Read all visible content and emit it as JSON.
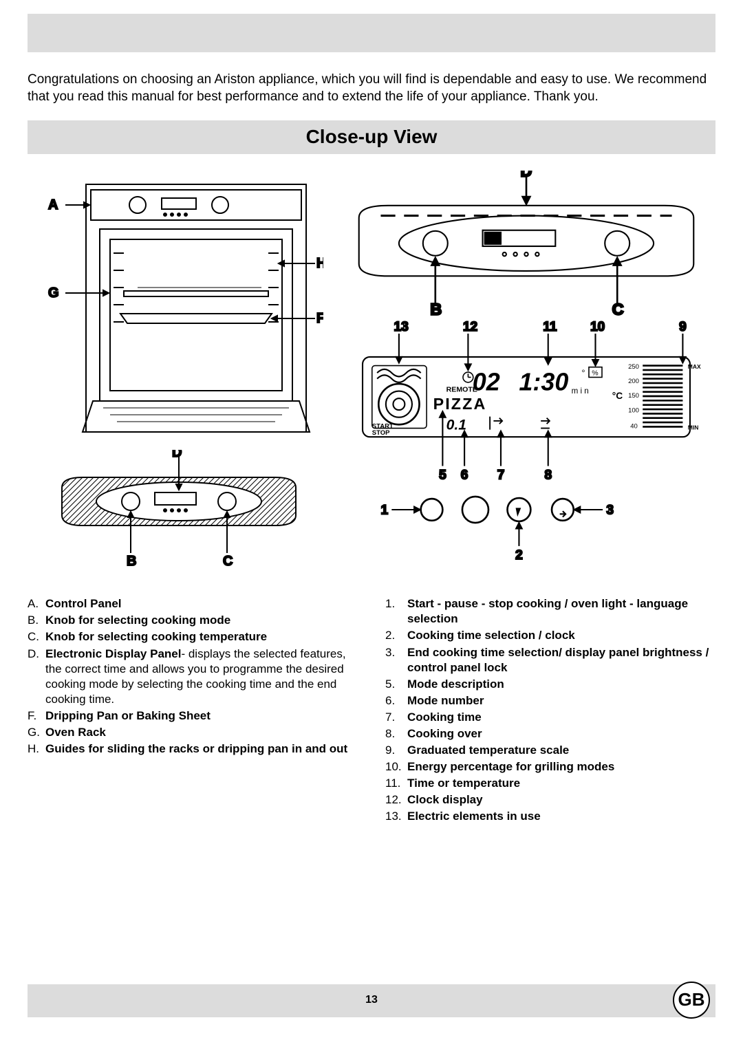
{
  "intro_text": "Congratulations on choosing an Ariston appliance, which you will find is dependable and easy to use. We recommend that you read this manual for best performance and to extend the life of your appliance. Thank  you.",
  "section_title": "Close-up View",
  "page_number": "13",
  "country_code": "GB",
  "oven_labels": {
    "A": "A",
    "B": "B",
    "C": "C",
    "D": "D",
    "F": "F",
    "G": "G",
    "H": "H"
  },
  "display_labels": {
    "n1": "1",
    "n2": "2",
    "n3": "3",
    "n5": "5",
    "n6": "6",
    "n7": "7",
    "n8": "8",
    "n9": "9",
    "n10": "10",
    "n11": "11",
    "n12": "12",
    "n13": "13"
  },
  "display_text": {
    "pizza": "PIZZA",
    "remote": "REMOTE",
    "start": "START",
    "stop": "STOP",
    "min_unit": "m i n",
    "deg_c": "°C",
    "time": "1:30",
    "segment": "02",
    "mode_num": "0.1",
    "t250": "250",
    "t200": "200",
    "t150": "150",
    "t100": "100",
    "t40": "40",
    "tmax": "MAX",
    "tmin": "MIN"
  },
  "legend_left": [
    {
      "letter": "A.",
      "bold": "Control Panel",
      "rest": ""
    },
    {
      "letter": "B.",
      "bold": "Knob for selecting cooking mode",
      "rest": ""
    },
    {
      "letter": "C.",
      "bold": "Knob for selecting cooking temperature",
      "rest": ""
    },
    {
      "letter": "D.",
      "bold": "Electronic Display Panel",
      "rest": "- displays the selected features, the correct time and allows you to programme the desired cooking mode by selecting the cooking time and the end cooking time."
    },
    {
      "letter": "F.",
      "bold": "Dripping Pan or Baking Sheet",
      "rest": ""
    },
    {
      "letter": "G.",
      "bold": "Oven Rack",
      "rest": ""
    },
    {
      "letter": "H.",
      "bold": "Guides for sliding the racks or dripping pan in and out",
      "rest": ""
    }
  ],
  "legend_right": [
    {
      "num": "1.",
      "bold": "Start - pause - stop cooking / oven light -  language selection"
    },
    {
      "num": "2.",
      "bold": "Cooking time selection / clock"
    },
    {
      "num": "3.",
      "bold": "End cooking time selection/ display panel brightness / control panel lock"
    },
    {
      "num": "5.",
      "bold": "Mode description"
    },
    {
      "num": "6.",
      "bold": "Mode number"
    },
    {
      "num": "7.",
      "bold": "Cooking time"
    },
    {
      "num": "8.",
      "bold": "Cooking over"
    },
    {
      "num": "9.",
      "bold": "Graduated temperature scale"
    },
    {
      "num": "10.",
      "bold": "Energy percentage for grilling modes"
    },
    {
      "num": "11.",
      "bold": "Time or temperature"
    },
    {
      "num": "12.",
      "bold": "Clock display"
    },
    {
      "num": "13.",
      "bold": "Electric elements in use"
    }
  ],
  "colors": {
    "page_bg": "#ffffff",
    "gray_bar": "#dcdcdc",
    "text": "#000000",
    "stroke": "#000000"
  }
}
